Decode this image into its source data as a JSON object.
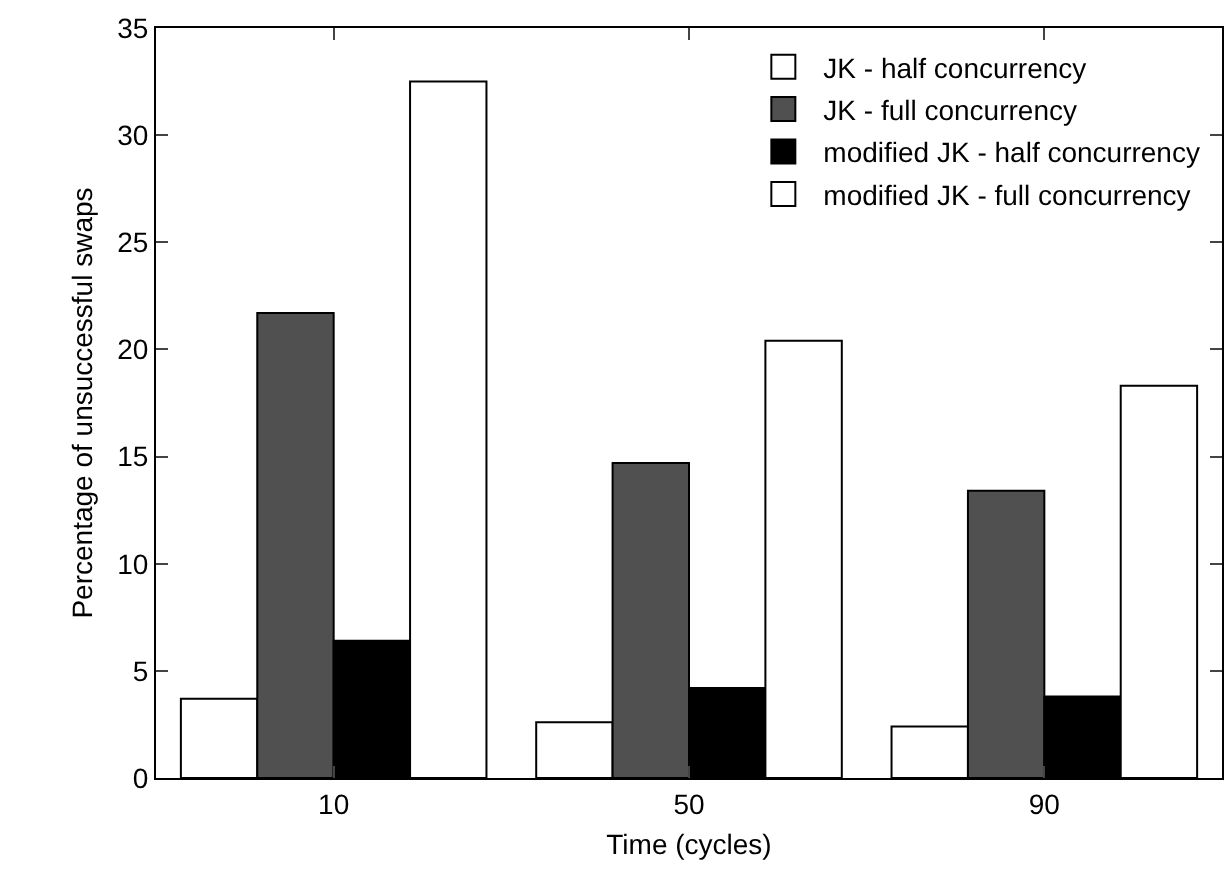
{
  "chart_data": {
    "type": "bar",
    "xlabel": "Time (cycles)",
    "ylabel": "Percentage of unsuccessful swaps",
    "categories": [
      "10",
      "50",
      "90"
    ],
    "series": [
      {
        "name": "JK - half concurrency",
        "color": "#ffffff",
        "values": [
          3.7,
          2.6,
          2.4
        ]
      },
      {
        "name": "JK - full concurrency",
        "color": "#505050",
        "values": [
          21.7,
          14.7,
          13.4
        ]
      },
      {
        "name": "modified JK - half concurrency",
        "color": "#000000",
        "values": [
          6.4,
          4.2,
          3.8
        ]
      },
      {
        "name": "modified JK - full concurrency",
        "color": "#ffffff",
        "values": [
          32.5,
          20.4,
          18.3
        ]
      }
    ],
    "ylim": [
      0,
      35
    ],
    "yticks": [
      0,
      5,
      10,
      15,
      20,
      25,
      30,
      35
    ],
    "grid": false,
    "legend": "top right"
  }
}
